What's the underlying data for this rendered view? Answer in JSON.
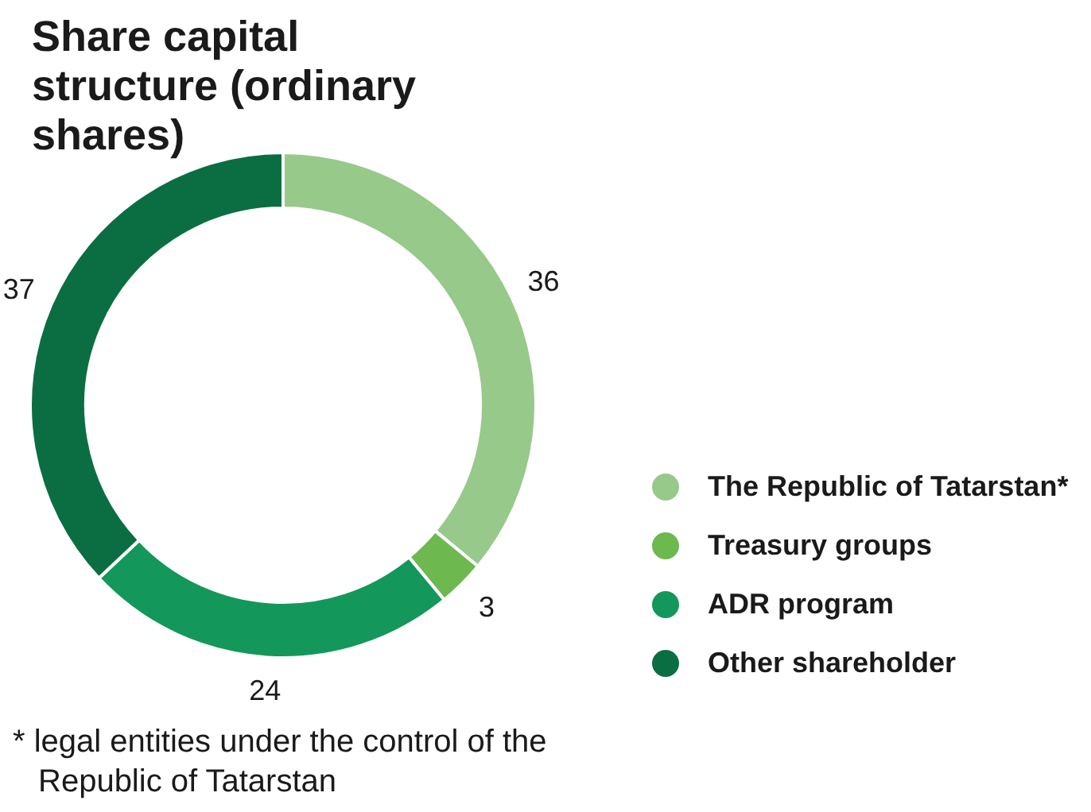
{
  "chart_data": {
    "type": "donut",
    "title": "Share capital structure (ordinary shares)",
    "categories": [
      "The Republic of Tatarstan*",
      "Treasury groups",
      "ADR program",
      "Other shareholder"
    ],
    "values": [
      36,
      3,
      24,
      37
    ],
    "colors": [
      "#97c98a",
      "#6db84f",
      "#14975a",
      "#0a6e42"
    ],
    "data_labels": true,
    "legend": "right",
    "annotations": [
      "* legal entities under the control of the Republic of Tatarstan"
    ]
  }
}
